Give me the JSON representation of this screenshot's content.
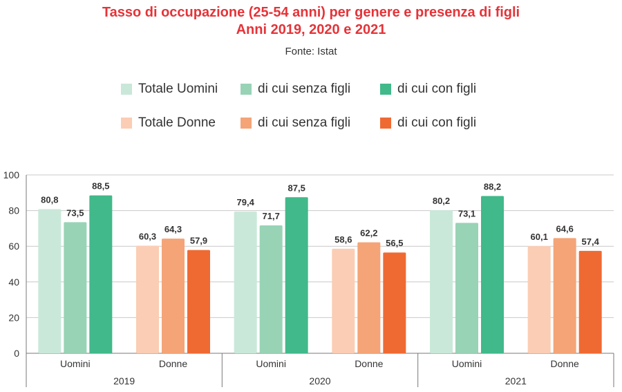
{
  "header": {
    "title_line1": "Tasso di occupazione (25-54 anni) per genere e presenza di figli",
    "title_line2": "Anni 2019, 2020 e 2021",
    "source": "Fonte: Istat"
  },
  "colors": {
    "title": "#e53338",
    "totale_uomini": "#c9e8d9",
    "uomini_senza_figli": "#98d3b6",
    "uomini_con_figli": "#41b98a",
    "totale_donne": "#fbcdb4",
    "donne_senza_figli": "#f4a477",
    "donne_con_figli": "#ef6a33"
  },
  "chart_data": {
    "type": "bar",
    "title": "Tasso di occupazione (25-54 anni) per genere e presenza di figli",
    "subtitle": "Anni 2019, 2020 e 2021",
    "source": "Fonte: Istat",
    "ylim": [
      0,
      100
    ],
    "yticks": [
      "0",
      "20",
      "40",
      "60",
      "80",
      "100"
    ],
    "grid": true,
    "legend_position": "top",
    "legend": [
      {
        "name": "Totale Uomini",
        "color": "#c9e8d9"
      },
      {
        "name": "di cui senza figli",
        "color": "#98d3b6"
      },
      {
        "name": "di cui con figli",
        "color": "#41b98a"
      },
      {
        "name": "Totale Donne",
        "color": "#fbcdb4"
      },
      {
        "name": "di cui senza figli",
        "color": "#f4a477"
      },
      {
        "name": "di cui con figli",
        "color": "#ef6a33"
      }
    ],
    "years": [
      {
        "label": "2019",
        "groups": [
          {
            "label": "Uomini",
            "values": [
              80.8,
              73.5,
              88.5
            ],
            "labels": [
              "80,8",
              "73,5",
              "88,5"
            ]
          },
          {
            "label": "Donne",
            "values": [
              60.3,
              64.3,
              57.9
            ],
            "labels": [
              "60,3",
              "64,3",
              "57,9"
            ]
          }
        ]
      },
      {
        "label": "2020",
        "groups": [
          {
            "label": "Uomini",
            "values": [
              79.4,
              71.7,
              87.5
            ],
            "labels": [
              "79,4",
              "71,7",
              "87,5"
            ]
          },
          {
            "label": "Donne",
            "values": [
              58.6,
              62.2,
              56.5
            ],
            "labels": [
              "58,6",
              "62,2",
              "56,5"
            ]
          }
        ]
      },
      {
        "label": "2021",
        "groups": [
          {
            "label": "Uomini",
            "values": [
              80.2,
              73.1,
              88.2
            ],
            "labels": [
              "80,2",
              "73,1",
              "88,2"
            ]
          },
          {
            "label": "Donne",
            "values": [
              60.1,
              64.6,
              57.4
            ],
            "labels": [
              "60,1",
              "64,6",
              "57,4"
            ]
          }
        ]
      }
    ]
  }
}
